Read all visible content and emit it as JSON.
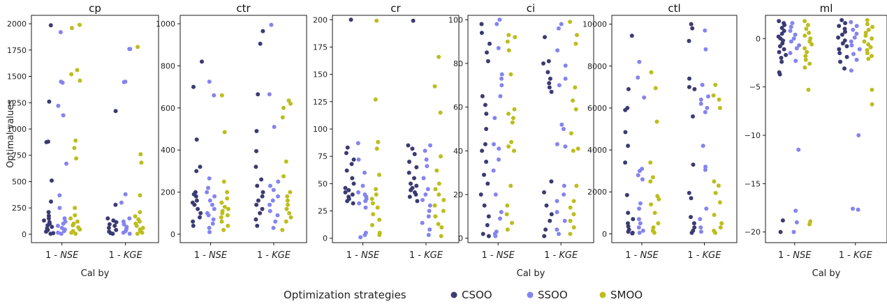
{
  "figure": {
    "y_axis_label": "Optimal values",
    "legend_title": "Optimization strategies"
  },
  "colors": {
    "CSOO": "#3b3b73",
    "SSOO": "#8484f0",
    "SMOO": "#bdbd1e"
  },
  "chart_data": [
    {
      "type": "scatter",
      "title": "cp",
      "xlabel": "Cal by",
      "ylabel": "Optimal values",
      "categories": [
        "1 - NSE",
        "1 - KGE"
      ],
      "ylim": [
        -80,
        2080
      ],
      "yticks": [
        0,
        250,
        500,
        750,
        1000,
        1250,
        1500,
        1750,
        2000
      ],
      "series": [
        {
          "name": "CSOO",
          "values": [
            [
              1985,
              1260,
              880,
              875,
              510,
              310,
              210,
              175,
              150,
              130,
              115,
              100,
              85,
              70,
              55,
              40,
              25,
              10,
              5
            ],
            [
              1170,
              280,
              150,
              130,
              115,
              95,
              80,
              60,
              40,
              25,
              10,
              5
            ]
          ]
        },
        {
          "name": "SSOO",
          "values": [
            [
              1920,
              1450,
              1440,
              1220,
              1130,
              670,
              370,
              250,
              150,
              120,
              100,
              80,
              60,
              45,
              30,
              15,
              5
            ],
            [
              1760,
              1760,
              1450,
              1445,
              380,
              300,
              150,
              120,
              95,
              70,
              50,
              30,
              15,
              5
            ]
          ]
        },
        {
          "name": "SMOO",
          "values": [
            [
              1990,
              1960,
              1560,
              1520,
              1460,
              890,
              820,
              720,
              250,
              180,
              150,
              120,
              100,
              85,
              65,
              45,
              30,
              15,
              5
            ],
            [
              1780,
              760,
              680,
              370,
              210,
              170,
              140,
              120,
              100,
              80,
              60,
              45,
              30,
              15,
              5
            ]
          ]
        }
      ]
    },
    {
      "type": "scatter",
      "title": "ctr",
      "xlabel": "",
      "ylabel": "",
      "categories": [
        "1 - NSE",
        "1 - KGE"
      ],
      "ylim": [
        -40,
        1040
      ],
      "yticks": [
        0,
        200,
        400,
        600,
        800,
        1000
      ],
      "series": [
        {
          "name": "CSOO",
          "values": [
            [
              820,
              700,
              450,
              320,
              300,
              200,
              190,
              180,
              160,
              150,
              140,
              120,
              100,
              80,
              60,
              40
            ],
            [
              965,
              905,
              665,
              490,
              395,
              320,
              260,
              230,
              200,
              180,
              160,
              140,
              120,
              100,
              70,
              40
            ]
          ]
        },
        {
          "name": "SSOO",
          "values": [
            [
              725,
              660,
              265,
              220,
              200,
              180,
              160,
              140,
              120,
              100,
              90,
              70,
              50,
              30,
              10
            ],
            [
              995,
              665,
              510,
              250,
              230,
              210,
              180,
              160,
              140,
              110,
              90,
              60,
              30
            ]
          ]
        },
        {
          "name": "SMOO",
          "values": [
            [
              660,
              485,
              250,
              200,
              170,
              150,
              130,
              120,
              110,
              100,
              90,
              80,
              60,
              40,
              20
            ],
            [
              635,
              620,
              600,
              555,
              345,
              275,
              200,
              180,
              160,
              140,
              120,
              100,
              80,
              60,
              20
            ]
          ]
        }
      ]
    },
    {
      "type": "scatter",
      "title": "cr",
      "xlabel": "",
      "ylabel": "",
      "categories": [
        "1 - NSE",
        "1 - KGE"
      ],
      "ylim": [
        -4,
        204
      ],
      "yticks": [
        0,
        25,
        50,
        75,
        100,
        125,
        150,
        175,
        200
      ],
      "series": [
        {
          "name": "CSOO",
          "values": [
            [
              200,
              83,
              78,
              72,
              68,
              62,
              55,
              50,
              46,
              44,
              42,
              40,
              38,
              36,
              34,
              32
            ],
            [
              199,
              85,
              82,
              77,
              70,
              65,
              60,
              55,
              50,
              48,
              46,
              44,
              42,
              40,
              38,
              34
            ]
          ]
        },
        {
          "name": "SSOO",
          "values": [
            [
              87,
              72,
              60,
              48,
              42,
              40,
              38,
              36,
              34,
              32,
              28,
              5,
              3,
              1
            ],
            [
              85,
              80,
              72,
              66,
              55,
              45,
              40,
              35,
              30,
              25,
              20,
              14,
              8,
              3
            ]
          ]
        },
        {
          "name": "SMOO",
          "values": [
            [
              199,
              127,
              88,
              82,
              58,
              45,
              40,
              36,
              32,
              28,
              22,
              17,
              12,
              5,
              3
            ],
            [
              166,
              139,
              115,
              75,
              62,
              50,
              45,
              40,
              35,
              30,
              25,
              20,
              13,
              10,
              2
            ]
          ]
        }
      ]
    },
    {
      "type": "scatter",
      "title": "ci",
      "xlabel": "Cal by",
      "ylabel": "",
      "categories": [
        "1 - NSE",
        "1 - KGE"
      ],
      "ylim": [
        -2,
        102
      ],
      "yticks": [
        0,
        20,
        40,
        60,
        80,
        100
      ],
      "series": [
        {
          "name": "CSOO",
          "values": [
            [
              98,
              94,
              89,
              85,
              81,
              65,
              61,
              57,
              50,
              43,
              40,
              35,
              29,
              25,
              20,
              15,
              10,
              6,
              2,
              1
            ],
            [
              92,
              81,
              80,
              76,
              73,
              71,
              69,
              67,
              26,
              21,
              15,
              11,
              8,
              4,
              1
            ]
          ]
        },
        {
          "name": "SSOO",
          "values": [
            [
              100,
              98,
              87,
              75,
              73,
              70,
              65,
              55,
              43,
              41,
              36,
              31,
              20,
              12,
              9,
              3,
              2,
              1
            ],
            [
              98,
              96,
              86,
              79,
              73,
              70,
              52,
              50,
              43,
              42,
              24,
              20,
              17,
              12,
              8,
              4,
              2
            ]
          ]
        },
        {
          "name": "SMOO",
          "values": [
            [
              93,
              92,
              90,
              86,
              75,
              59,
              57,
              55,
              53,
              44,
              42,
              40,
              24,
              15,
              11,
              7,
              4
            ],
            [
              99,
              93,
              89,
              69,
              63,
              59,
              48,
              41,
              40,
              24,
              17,
              14,
              11,
              8,
              5,
              2
            ]
          ]
        }
      ]
    },
    {
      "type": "scatter",
      "title": "ctl",
      "xlabel": "",
      "ylabel": "",
      "categories": [
        "1 - NSE",
        "1 - KGE"
      ],
      "ylim": [
        -420,
        10420
      ],
      "yticks": [
        0,
        2000,
        4000,
        6000,
        8000,
        10000
      ],
      "series": [
        {
          "name": "CSOO",
          "values": [
            [
              9450,
              6900,
              6000,
              5900,
              4850,
              4200,
              3400,
              1850,
              1000,
              700,
              500,
              350,
              200,
              100,
              50,
              20
            ],
            [
              10000,
              9800,
              9200,
              7400,
              7000,
              6900,
              5600,
              3300,
              1950,
              1700,
              800,
              500,
              300,
              150,
              50
            ]
          ]
        },
        {
          "name": "SSOO",
          "values": [
            [
              8200,
              7450,
              6500,
              3100,
              3000,
              2800,
              2600,
              1450,
              1200,
              700,
              500,
              300,
              150,
              50
            ],
            [
              9700,
              8800,
              7100,
              6550,
              6400,
              6200,
              6000,
              5800,
              4200,
              3200,
              3050,
              1200,
              700,
              300,
              100
            ]
          ]
        },
        {
          "name": "SMOO",
          "values": [
            [
              7700,
              6950,
              5350,
              3400,
              2700,
              2500,
              1800,
              1650,
              1400,
              1000,
              500,
              300,
              150,
              50
            ],
            [
              7100,
              6600,
              6400,
              6000,
              2500,
              2300,
              1950,
              1500,
              900,
              500,
              300,
              150,
              50
            ]
          ]
        }
      ]
    },
    {
      "type": "scatter",
      "title": "ml",
      "xlabel": "Cal by",
      "ylabel": "",
      "categories": [
        "1 - NSE",
        "1 - KGE"
      ],
      "ylim": [
        -21.1,
        2.4
      ],
      "yticks": [
        -20,
        -15,
        -10,
        -5,
        0
      ],
      "series": [
        {
          "name": "CSOO",
          "values": [
            [
              1.8,
              1.6,
              1.4,
              1.1,
              0.8,
              0.5,
              0.2,
              0.0,
              -0.2,
              -0.5,
              -0.8,
              -1.1,
              -1.4,
              -1.7,
              -2.0,
              -2.4,
              -3.5,
              -3.7,
              -18.8,
              -20.0
            ],
            [
              1.9,
              1.6,
              1.3,
              1.0,
              0.7,
              0.4,
              0.1,
              -0.2,
              -0.5,
              -0.8,
              -1.1,
              -1.5,
              -1.9,
              -2.4,
              -3.1
            ]
          ]
        },
        {
          "name": "SSOO",
          "values": [
            [
              1.6,
              1.2,
              0.8,
              0.4,
              0.0,
              -0.3,
              -0.7,
              -1.0,
              -1.5,
              -2.3,
              -11.5,
              -17.8,
              -19.0,
              -20.0
            ],
            [
              1.7,
              1.3,
              0.9,
              0.5,
              0.1,
              -0.3,
              -0.7,
              -1.1,
              -1.6,
              -2.2,
              -3.3,
              -10.0,
              -17.6,
              -17.7
            ]
          ]
        },
        {
          "name": "SMOO",
          "values": [
            [
              1.8,
              1.4,
              1.0,
              0.6,
              0.3,
              0.0,
              -0.3,
              -0.6,
              -1.0,
              -1.4,
              -1.8,
              -2.2,
              -2.6,
              -3.0,
              -5.3,
              -18.9,
              -19.2
            ],
            [
              1.9,
              1.5,
              1.2,
              0.9,
              0.6,
              0.3,
              0.0,
              -0.3,
              -0.6,
              -0.9,
              -1.2,
              -1.5,
              -1.8,
              -2.1,
              -5.3,
              -6.8
            ]
          ]
        }
      ]
    }
  ]
}
